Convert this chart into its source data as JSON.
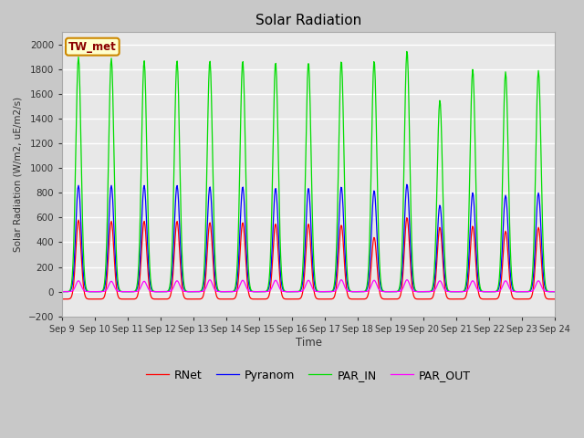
{
  "title": "Solar Radiation",
  "ylabel": "Solar Radiation (W/m2, uE/m2/s)",
  "xlabel": "Time",
  "station_label": "TW_met",
  "ylim": [
    -200,
    2100
  ],
  "yticks": [
    -200,
    0,
    200,
    400,
    600,
    800,
    1000,
    1200,
    1400,
    1600,
    1800,
    2000
  ],
  "x_start_day": 9,
  "x_end_day": 24,
  "x_tick_days": [
    9,
    10,
    11,
    12,
    13,
    14,
    15,
    16,
    17,
    18,
    19,
    20,
    21,
    22,
    23,
    24
  ],
  "colors": {
    "RNet": "#ff0000",
    "Pyranom": "#0000ff",
    "PAR_IN": "#00dd00",
    "PAR_OUT": "#ff00ff"
  },
  "fig_bg": "#c8c8c8",
  "plot_bg": "#e8e8e8",
  "grid_color": "#ffffff",
  "par_in_peaks": [
    1900,
    1890,
    1870,
    1870,
    1870,
    1870,
    1860,
    1860,
    1870,
    1870,
    1950,
    1550,
    1800,
    1780,
    1790
  ],
  "pyranom_peaks": [
    860,
    860,
    860,
    860,
    850,
    850,
    840,
    840,
    850,
    820,
    870,
    700,
    800,
    780,
    800
  ],
  "rnet_peaks": [
    580,
    570,
    570,
    570,
    560,
    560,
    550,
    550,
    540,
    440,
    600,
    520,
    530,
    490,
    520
  ],
  "par_out_peaks": [
    110,
    105,
    105,
    110,
    120,
    115,
    115,
    115,
    120,
    115,
    120,
    110,
    110,
    110,
    110
  ],
  "rnet_night": -60,
  "legend_entries": [
    "RNet",
    "Pyranom",
    "PAR_IN",
    "PAR_OUT"
  ]
}
